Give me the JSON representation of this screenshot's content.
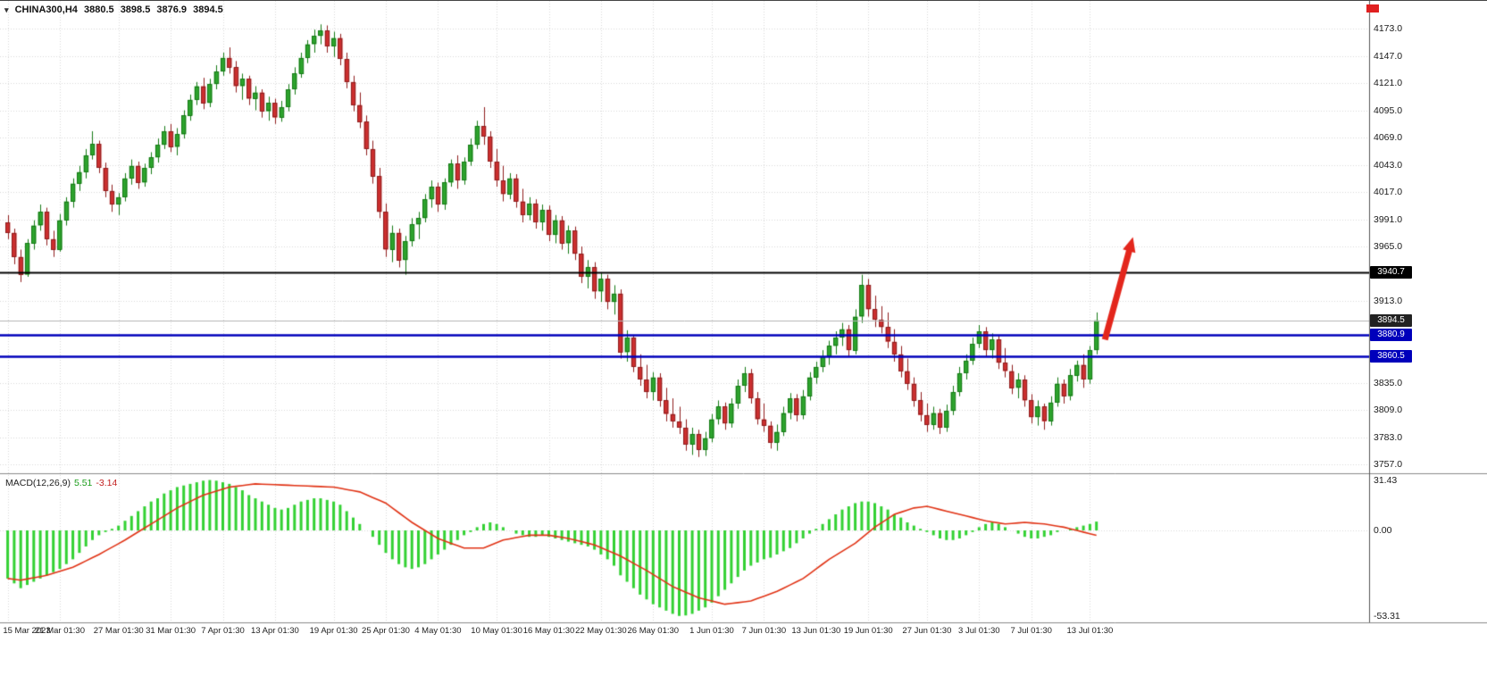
{
  "chart_header": {
    "dropdown_icon": "▾",
    "symbol_tf": "CHINA300,H4",
    "open": "3880.5",
    "high": "3898.5",
    "low": "3876.9",
    "close": "3894.5"
  },
  "macd_panel": {
    "name": "MACD(12,26,9)",
    "value": "5.51",
    "signal_value": "-3.14"
  },
  "price_axis": {
    "ticks": [
      "4173.0",
      "4147.0",
      "4121.0",
      "4095.0",
      "4069.0",
      "4043.0",
      "4017.0",
      "3991.0",
      "3965.0",
      "3913.0",
      "3835.0",
      "3809.0",
      "3783.0",
      "3757.0"
    ],
    "level_labels": [
      {
        "text": "3940.7",
        "price": 3940.7,
        "bg": "#000000"
      },
      {
        "text": "3894.5",
        "price": 3894.5,
        "bg": "#222222"
      },
      {
        "text": "3880.9",
        "price": 3880.9,
        "bg": "#0000bb"
      },
      {
        "text": "3860.5",
        "price": 3860.5,
        "bg": "#0000bb"
      }
    ]
  },
  "macd_axis": {
    "ticks": [
      {
        "text": "31.43",
        "value": 31.43
      },
      {
        "text": "0.00",
        "value": 0
      },
      {
        "text": "-53.31",
        "value": -53.31
      }
    ]
  },
  "time_axis": {
    "labels": [
      "15 Mar 2023",
      "21 Mar 01:30",
      "27 Mar 01:30",
      "31 Mar 01:30",
      "7 Apr 01:30",
      "13 Apr 01:30",
      "19 Apr 01:30",
      "25 Apr 01:30",
      "4 May 01:30",
      "10 May 01:30",
      "16 May 01:30",
      "22 May 01:30",
      "26 May 01:30",
      "1 Jun 01:30",
      "7 Jun 01:30",
      "13 Jun 01:30",
      "19 Jun 01:30",
      "27 Jun 01:30",
      "3 Jul 01:30",
      "7 Jul 01:30",
      "13 Jul 01:30"
    ]
  },
  "colors": {
    "bull": "#2da32d",
    "bull_border": "#157a15",
    "bear": "#cc2f2f",
    "bear_border": "#8f1d1d",
    "macd_hist": "#33d133",
    "macd_signal": "#e03214",
    "level_black": "#000000",
    "level_blue": "#0000bb",
    "bid_line": "#b4b4b4",
    "grid": "#d8d8d8",
    "arrow": "#e3261c"
  },
  "chart_data": {
    "type": "candlestick+macd",
    "title": "CHINA300 H4",
    "price_range": [
      3757.0,
      4173.0
    ],
    "macd_range": [
      -53.31,
      31.43
    ],
    "levels": {
      "resistance": 3940.7,
      "bid": 3894.5,
      "support_upper": 3880.9,
      "support_lower": 3860.5
    },
    "tick_candle_indices": [
      0,
      8,
      17,
      25,
      33,
      41,
      50,
      58,
      66,
      75,
      83,
      91,
      99,
      108,
      116,
      124,
      132,
      141,
      149,
      157,
      166
    ],
    "annotation_arrow": {
      "from_index": 168.3,
      "from_price": 3876,
      "to_index": 172.6,
      "to_price": 3974
    },
    "candles": [
      [
        3988,
        3995,
        3972,
        3978
      ],
      [
        3978,
        3982,
        3948,
        3955
      ],
      [
        3955,
        3962,
        3931,
        3938
      ],
      [
        3938,
        3972,
        3936,
        3968
      ],
      [
        3968,
        3990,
        3962,
        3985
      ],
      [
        3985,
        4005,
        3980,
        3998
      ],
      [
        3998,
        4002,
        3966,
        3972
      ],
      [
        3972,
        3980,
        3955,
        3962
      ],
      [
        3962,
        3996,
        3960,
        3990
      ],
      [
        3990,
        4012,
        3985,
        4008
      ],
      [
        4008,
        4030,
        4002,
        4025
      ],
      [
        4025,
        4042,
        4018,
        4036
      ],
      [
        4036,
        4058,
        4030,
        4052
      ],
      [
        4052,
        4075,
        4048,
        4063
      ],
      [
        4063,
        4066,
        4035,
        4040
      ],
      [
        4040,
        4045,
        4012,
        4018
      ],
      [
        4018,
        4024,
        3998,
        4005
      ],
      [
        4005,
        4016,
        3995,
        4012
      ],
      [
        4012,
        4035,
        4008,
        4030
      ],
      [
        4030,
        4048,
        4024,
        4042
      ],
      [
        4042,
        4046,
        4020,
        4026
      ],
      [
        4026,
        4044,
        4022,
        4040
      ],
      [
        4040,
        4055,
        4034,
        4050
      ],
      [
        4050,
        4068,
        4045,
        4062
      ],
      [
        4062,
        4080,
        4058,
        4075
      ],
      [
        4075,
        4082,
        4055,
        4060
      ],
      [
        4060,
        4078,
        4052,
        4072
      ],
      [
        4072,
        4095,
        4068,
        4090
      ],
      [
        4090,
        4110,
        4085,
        4105
      ],
      [
        4105,
        4122,
        4100,
        4118
      ],
      [
        4118,
        4126,
        4096,
        4102
      ],
      [
        4102,
        4125,
        4098,
        4120
      ],
      [
        4120,
        4138,
        4115,
        4132
      ],
      [
        4132,
        4150,
        4128,
        4145
      ],
      [
        4145,
        4155,
        4130,
        4136
      ],
      [
        4136,
        4142,
        4112,
        4118
      ],
      [
        4118,
        4130,
        4105,
        4125
      ],
      [
        4125,
        4128,
        4100,
        4106
      ],
      [
        4106,
        4118,
        4095,
        4112
      ],
      [
        4112,
        4115,
        4088,
        4094
      ],
      [
        4094,
        4108,
        4085,
        4102
      ],
      [
        4102,
        4106,
        4082,
        4088
      ],
      [
        4088,
        4104,
        4084,
        4098
      ],
      [
        4098,
        4120,
        4094,
        4115
      ],
      [
        4115,
        4136,
        4110,
        4130
      ],
      [
        4130,
        4150,
        4126,
        4145
      ],
      [
        4145,
        4162,
        4140,
        4158
      ],
      [
        4158,
        4172,
        4150,
        4166
      ],
      [
        4166,
        4177,
        4158,
        4171
      ],
      [
        4171,
        4176,
        4150,
        4156
      ],
      [
        4156,
        4170,
        4146,
        4164
      ],
      [
        4164,
        4168,
        4138,
        4144
      ],
      [
        4144,
        4150,
        4116,
        4122
      ],
      [
        4122,
        4128,
        4094,
        4100
      ],
      [
        4100,
        4112,
        4078,
        4084
      ],
      [
        4084,
        4090,
        4052,
        4058
      ],
      [
        4058,
        4066,
        4025,
        4032
      ],
      [
        4032,
        4040,
        3992,
        3998
      ],
      [
        3998,
        4006,
        3955,
        3962
      ],
      [
        3962,
        3985,
        3950,
        3978
      ],
      [
        3978,
        3982,
        3945,
        3952
      ],
      [
        3952,
        3975,
        3938,
        3970
      ],
      [
        3970,
        3992,
        3965,
        3986
      ],
      [
        3986,
        3998,
        3972,
        3992
      ],
      [
        3992,
        4015,
        3988,
        4010
      ],
      [
        4010,
        4028,
        4002,
        4022
      ],
      [
        4022,
        4026,
        3998,
        4005
      ],
      [
        4005,
        4030,
        4000,
        4026
      ],
      [
        4026,
        4048,
        4022,
        4044
      ],
      [
        4044,
        4052,
        4020,
        4028
      ],
      [
        4028,
        4050,
        4024,
        4046
      ],
      [
        4046,
        4068,
        4042,
        4062
      ],
      [
        4062,
        4085,
        4058,
        4080
      ],
      [
        4080,
        4098,
        4062,
        4070
      ],
      [
        4070,
        4075,
        4040,
        4046
      ],
      [
        4046,
        4058,
        4022,
        4028
      ],
      [
        4028,
        4042,
        4008,
        4015
      ],
      [
        4015,
        4035,
        4010,
        4030
      ],
      [
        4030,
        4034,
        4002,
        4008
      ],
      [
        4008,
        4020,
        3988,
        3995
      ],
      [
        3995,
        4012,
        3990,
        4006
      ],
      [
        4006,
        4010,
        3982,
        3988
      ],
      [
        3988,
        4005,
        3980,
        4000
      ],
      [
        4000,
        4004,
        3970,
        3976
      ],
      [
        3976,
        3995,
        3968,
        3990
      ],
      [
        3990,
        3994,
        3962,
        3968
      ],
      [
        3968,
        3985,
        3958,
        3980
      ],
      [
        3980,
        3984,
        3952,
        3958
      ],
      [
        3958,
        3965,
        3930,
        3936
      ],
      [
        3936,
        3952,
        3925,
        3945
      ],
      [
        3945,
        3950,
        3915,
        3922
      ],
      [
        3922,
        3940,
        3912,
        3934
      ],
      [
        3934,
        3938,
        3905,
        3912
      ],
      [
        3912,
        3928,
        3900,
        3920
      ],
      [
        3920,
        3924,
        3858,
        3864
      ],
      [
        3864,
        3885,
        3855,
        3878
      ],
      [
        3878,
        3880,
        3845,
        3850
      ],
      [
        3850,
        3862,
        3832,
        3838
      ],
      [
        3838,
        3852,
        3820,
        3826
      ],
      [
        3826,
        3845,
        3818,
        3840
      ],
      [
        3840,
        3844,
        3812,
        3818
      ],
      [
        3818,
        3830,
        3798,
        3805
      ],
      [
        3805,
        3820,
        3792,
        3798
      ],
      [
        3798,
        3812,
        3786,
        3792
      ],
      [
        3792,
        3800,
        3770,
        3776
      ],
      [
        3776,
        3792,
        3766,
        3786
      ],
      [
        3786,
        3790,
        3764,
        3771
      ],
      [
        3771,
        3788,
        3765,
        3782
      ],
      [
        3782,
        3805,
        3778,
        3800
      ],
      [
        3800,
        3818,
        3795,
        3812
      ],
      [
        3812,
        3816,
        3790,
        3796
      ],
      [
        3796,
        3820,
        3792,
        3815
      ],
      [
        3815,
        3838,
        3810,
        3832
      ],
      [
        3832,
        3850,
        3826,
        3844
      ],
      [
        3844,
        3848,
        3815,
        3820
      ],
      [
        3820,
        3826,
        3795,
        3800
      ],
      [
        3800,
        3815,
        3788,
        3794
      ],
      [
        3794,
        3798,
        3772,
        3778
      ],
      [
        3778,
        3795,
        3770,
        3788
      ],
      [
        3788,
        3812,
        3784,
        3806
      ],
      [
        3806,
        3825,
        3800,
        3820
      ],
      [
        3820,
        3824,
        3798,
        3804
      ],
      [
        3804,
        3828,
        3800,
        3822
      ],
      [
        3822,
        3845,
        3818,
        3840
      ],
      [
        3840,
        3855,
        3834,
        3850
      ],
      [
        3850,
        3866,
        3845,
        3860
      ],
      [
        3860,
        3875,
        3852,
        3870
      ],
      [
        3870,
        3884,
        3862,
        3878
      ],
      [
        3878,
        3892,
        3870,
        3886
      ],
      [
        3886,
        3890,
        3860,
        3866
      ],
      [
        3866,
        3905,
        3862,
        3898
      ],
      [
        3898,
        3938,
        3892,
        3928
      ],
      [
        3928,
        3934,
        3898,
        3905
      ],
      [
        3905,
        3918,
        3888,
        3895
      ],
      [
        3895,
        3908,
        3882,
        3888
      ],
      [
        3888,
        3902,
        3868,
        3874
      ],
      [
        3874,
        3886,
        3855,
        3862
      ],
      [
        3862,
        3870,
        3840,
        3846
      ],
      [
        3846,
        3858,
        3828,
        3834
      ],
      [
        3834,
        3840,
        3812,
        3818
      ],
      [
        3818,
        3826,
        3798,
        3804
      ],
      [
        3804,
        3815,
        3788,
        3795
      ],
      [
        3795,
        3812,
        3790,
        3806
      ],
      [
        3806,
        3810,
        3786,
        3792
      ],
      [
        3792,
        3814,
        3788,
        3808
      ],
      [
        3808,
        3832,
        3804,
        3826
      ],
      [
        3826,
        3850,
        3822,
        3844
      ],
      [
        3844,
        3862,
        3838,
        3856
      ],
      [
        3856,
        3878,
        3852,
        3872
      ],
      [
        3872,
        3890,
        3868,
        3884
      ],
      [
        3884,
        3888,
        3860,
        3866
      ],
      [
        3866,
        3882,
        3858,
        3876
      ],
      [
        3876,
        3880,
        3848,
        3854
      ],
      [
        3854,
        3868,
        3840,
        3846
      ],
      [
        3846,
        3852,
        3824,
        3830
      ],
      [
        3830,
        3844,
        3820,
        3838
      ],
      [
        3838,
        3842,
        3812,
        3818
      ],
      [
        3818,
        3824,
        3796,
        3802
      ],
      [
        3802,
        3818,
        3794,
        3812
      ],
      [
        3812,
        3815,
        3790,
        3798
      ],
      [
        3798,
        3822,
        3794,
        3816
      ],
      [
        3816,
        3840,
        3812,
        3834
      ],
      [
        3834,
        3838,
        3815,
        3822
      ],
      [
        3822,
        3848,
        3818,
        3842
      ],
      [
        3842,
        3856,
        3836,
        3852
      ],
      [
        3852,
        3862,
        3830,
        3838
      ],
      [
        3838,
        3870,
        3834,
        3866
      ],
      [
        3866,
        3902,
        3862,
        3894.5
      ]
    ],
    "macd_histogram": [
      -30,
      -33,
      -36,
      -34,
      -32,
      -30,
      -28,
      -26,
      -24,
      -21,
      -18,
      -14,
      -10,
      -6,
      -3,
      -1,
      1,
      3,
      6,
      9,
      12,
      15,
      18,
      20,
      23,
      25,
      27,
      28,
      29,
      30,
      31,
      31.4,
      31,
      30,
      29,
      27,
      25,
      22,
      20,
      18,
      16,
      14,
      13,
      14,
      16,
      18,
      19,
      20,
      20,
      19,
      18,
      16,
      12,
      8,
      4,
      0,
      -4,
      -9,
      -14,
      -18,
      -21,
      -23,
      -24,
      -23,
      -21,
      -18,
      -15,
      -12,
      -9,
      -6,
      -3,
      -1,
      2,
      4,
      5,
      4,
      2,
      0,
      -2,
      -3,
      -4,
      -4,
      -3,
      -4,
      -5,
      -6,
      -7,
      -8,
      -9,
      -10,
      -12,
      -15,
      -18,
      -22,
      -28,
      -32,
      -36,
      -40,
      -43,
      -46,
      -48,
      -50,
      -52,
      -53.3,
      -53,
      -52,
      -50,
      -48,
      -45,
      -41,
      -37,
      -33,
      -29,
      -25,
      -22,
      -20,
      -18,
      -17,
      -15,
      -13,
      -11,
      -8,
      -5,
      -2,
      1,
      4,
      7,
      10,
      13,
      15,
      17,
      18,
      18,
      17,
      15,
      13,
      10,
      8,
      5,
      3,
      1,
      -1,
      -3,
      -5,
      -6,
      -6,
      -5,
      -3,
      -1,
      2,
      4,
      5,
      4,
      2,
      0,
      -2,
      -4,
      -5,
      -5,
      -4,
      -3,
      -1,
      0,
      1,
      2,
      3,
      4,
      5.5
    ],
    "macd_signal_points": [
      [
        0,
        -30
      ],
      [
        2,
        -31
      ],
      [
        6,
        -28
      ],
      [
        10,
        -23
      ],
      [
        14,
        -15
      ],
      [
        18,
        -6
      ],
      [
        22,
        4
      ],
      [
        26,
        14
      ],
      [
        30,
        22
      ],
      [
        34,
        27
      ],
      [
        38,
        29
      ],
      [
        44,
        28
      ],
      [
        50,
        27
      ],
      [
        54,
        24
      ],
      [
        58,
        17
      ],
      [
        62,
        5
      ],
      [
        66,
        -5
      ],
      [
        70,
        -11
      ],
      [
        73,
        -11
      ],
      [
        76,
        -6
      ],
      [
        80,
        -3
      ],
      [
        83,
        -3
      ],
      [
        86,
        -5
      ],
      [
        90,
        -9
      ],
      [
        94,
        -16
      ],
      [
        98,
        -25
      ],
      [
        102,
        -35
      ],
      [
        106,
        -42
      ],
      [
        110,
        -46
      ],
      [
        114,
        -44
      ],
      [
        118,
        -38
      ],
      [
        122,
        -30
      ],
      [
        126,
        -18
      ],
      [
        130,
        -8
      ],
      [
        133,
        2
      ],
      [
        136,
        10
      ],
      [
        139,
        14
      ],
      [
        141,
        15
      ],
      [
        144,
        12
      ],
      [
        147,
        9
      ],
      [
        150,
        6
      ],
      [
        153,
        4
      ],
      [
        156,
        5
      ],
      [
        159,
        4
      ],
      [
        162,
        2
      ],
      [
        164,
        0
      ],
      [
        167,
        -3.1
      ]
    ]
  }
}
